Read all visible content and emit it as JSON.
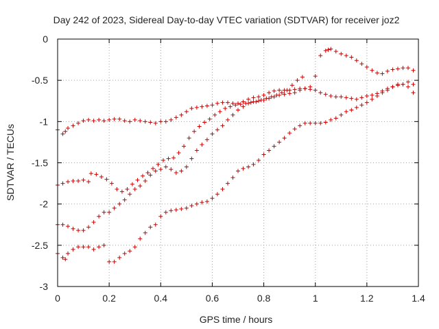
{
  "chart_data": {
    "type": "scatter",
    "title": "Day 242 of 2023, Sidereal Day-to-day VTEC variation (SDTVAR) for receiver joz2",
    "xlabel": "GPS time / hours",
    "ylabel": "SDTVAR / TECUs",
    "xlim": [
      0,
      1.4
    ],
    "ylim": [
      -3,
      0
    ],
    "x_ticks": [
      {
        "value": 0,
        "label": "0"
      },
      {
        "value": 0.2,
        "label": "0.2"
      },
      {
        "value": 0.4,
        "label": "0.4"
      },
      {
        "value": 0.6,
        "label": "0.6"
      },
      {
        "value": 0.8,
        "label": "0.8"
      },
      {
        "value": 1.0,
        "label": "1"
      },
      {
        "value": 1.2,
        "label": "1.2"
      },
      {
        "value": 1.4,
        "label": "1.4"
      }
    ],
    "y_ticks": [
      {
        "value": 0,
        "label": "0"
      },
      {
        "value": -0.5,
        "label": "-0.5"
      },
      {
        "value": -1,
        "label": "-1"
      },
      {
        "value": -1.5,
        "label": "-1.5"
      },
      {
        "value": -2,
        "label": "-2"
      },
      {
        "value": -2.5,
        "label": "-2.5"
      },
      {
        "value": -3,
        "label": "-3"
      }
    ],
    "grid": true,
    "marker": "+",
    "color": "#cc0000",
    "series": [
      {
        "x": [
          0,
          0.02,
          0.03,
          0.04,
          0.06,
          0.08,
          0.1,
          0.12,
          0.14,
          0.16,
          0.18,
          0.2,
          0.22,
          0.24,
          0.26,
          0.28,
          0.3,
          0.32,
          0.34,
          0.36,
          0.38,
          0.4,
          0.42,
          0.44,
          0.46,
          0.48,
          0.5,
          0.52,
          0.54,
          0.56,
          0.58,
          0.6,
          0.62,
          0.64,
          0.66,
          0.68,
          0.7,
          0.72,
          0.74,
          0.76,
          0.78,
          0.8,
          0.82,
          0.84,
          0.86,
          0.88,
          0.9,
          0.92,
          0.94,
          0.96,
          0.98,
          1.0,
          1.02,
          1.04,
          1.06,
          1.08,
          1.1,
          1.12,
          1.14,
          1.16,
          1.18,
          1.2,
          1.22,
          1.24,
          1.26,
          1.28,
          1.3,
          1.32,
          1.34,
          1.36,
          1.38
        ],
        "y": [
          -1.1,
          -1.15,
          -1.12,
          -1.08,
          -1.05,
          -1.02,
          -0.99,
          -0.98,
          -0.99,
          -0.98,
          -0.99,
          -0.98,
          -0.97,
          -0.97,
          -0.99,
          -1.0,
          -0.98,
          -0.99,
          -1.0,
          -1.01,
          -1.02,
          -1.0,
          -1.0,
          -0.98,
          -0.95,
          -0.92,
          -0.88,
          -0.84,
          -0.83,
          -0.82,
          -0.81,
          -0.8,
          -0.78,
          -0.77,
          -0.77,
          -0.78,
          -0.78,
          -0.76,
          -0.73,
          -0.71,
          -0.7,
          -0.68,
          -0.65,
          -0.63,
          -0.62,
          -0.62,
          -0.62,
          -0.61,
          -0.6,
          -0.6,
          -0.61,
          -0.62,
          -0.65,
          -0.67,
          -0.69,
          -0.7,
          -0.7,
          -0.71,
          -0.72,
          -0.73,
          -0.71,
          -0.69,
          -0.68,
          -0.66,
          -0.63,
          -0.6,
          -0.58,
          -0.56,
          -0.55,
          -0.52,
          -0.55
        ]
      },
      {
        "x": [
          0,
          0.02,
          0.04,
          0.06,
          0.08,
          0.1,
          0.12,
          0.13,
          0.15,
          0.17,
          0.19,
          0.21,
          0.23,
          0.25,
          0.27,
          0.29,
          0.31,
          0.33,
          0.35,
          0.37,
          0.39,
          0.41,
          0.43,
          0.45,
          0.47,
          0.49,
          0.51,
          0.53,
          0.55,
          0.57,
          0.59,
          0.61,
          0.63,
          0.65,
          0.67,
          0.69,
          0.71,
          0.73,
          0.75,
          0.77,
          0.79,
          0.81,
          0.83,
          0.85,
          0.87,
          0.89,
          0.91,
          0.93,
          0.95
        ],
        "y": [
          -1.77,
          -1.75,
          -1.73,
          -1.72,
          -1.72,
          -1.71,
          -1.73,
          -1.63,
          -1.64,
          -1.67,
          -1.7,
          -1.75,
          -1.82,
          -1.85,
          -1.82,
          -1.76,
          -1.71,
          -1.66,
          -1.62,
          -1.57,
          -1.52,
          -1.47,
          -1.45,
          -1.44,
          -1.38,
          -1.3,
          -1.2,
          -1.12,
          -1.06,
          -1.01,
          -0.97,
          -0.92,
          -0.88,
          -0.84,
          -0.82,
          -0.8,
          -0.79,
          -0.78,
          -0.77,
          -0.76,
          -0.74,
          -0.72,
          -0.7,
          -0.68,
          -0.65,
          -0.62,
          -0.56,
          -0.5,
          -0.46
        ]
      },
      {
        "x": [
          0,
          0.02,
          0.04,
          0.06,
          0.08,
          0.1,
          0.12,
          0.14,
          0.16,
          0.18,
          0.2,
          0.22,
          0.24,
          0.26,
          0.28,
          0.3,
          0.32,
          0.34,
          0.36,
          0.38,
          0.4,
          0.42,
          0.44,
          0.46,
          0.48,
          0.5,
          0.52,
          0.54,
          0.56,
          0.58,
          0.6,
          0.62,
          0.64,
          0.66,
          0.68,
          0.7,
          0.72,
          0.74,
          0.76,
          0.78,
          0.8,
          0.82,
          0.84,
          0.86,
          0.88,
          0.9,
          0.92,
          0.94,
          0.96,
          0.98,
          1.0,
          1.02,
          1.04,
          1.05,
          1.06,
          1.08,
          1.1,
          1.12,
          1.14,
          1.16,
          1.18,
          1.2,
          1.22,
          1.24,
          1.26,
          1.28,
          1.3,
          1.32,
          1.34,
          1.36,
          1.38
        ],
        "y": [
          -2.25,
          -2.25,
          -2.27,
          -2.3,
          -2.32,
          -2.32,
          -2.28,
          -2.22,
          -2.15,
          -2.1,
          -2.1,
          -2.05,
          -2.0,
          -1.95,
          -1.88,
          -1.82,
          -1.78,
          -1.72,
          -1.65,
          -1.6,
          -1.58,
          -1.55,
          -1.58,
          -1.62,
          -1.6,
          -1.55,
          -1.45,
          -1.35,
          -1.28,
          -1.22,
          -1.15,
          -1.1,
          -1.05,
          -0.98,
          -0.92,
          -0.86,
          -0.82,
          -0.78,
          -0.76,
          -0.75,
          -0.74,
          -0.72,
          -0.7,
          -0.68,
          -0.67,
          -0.66,
          -0.65,
          -0.62,
          -0.6,
          -0.58,
          -0.45,
          -0.2,
          -0.14,
          -0.13,
          -0.12,
          -0.15,
          -0.18,
          -0.2,
          -0.22,
          -0.26,
          -0.3,
          -0.34,
          -0.38,
          -0.41,
          -0.42,
          -0.39,
          -0.37,
          -0.36,
          -0.35,
          -0.35,
          -0.38
        ]
      },
      {
        "x": [
          0,
          0.02,
          0.03,
          0.04,
          0.06,
          0.08,
          0.1,
          0.12,
          0.14,
          0.16,
          0.18,
          0.2,
          0.22,
          0.24,
          0.26,
          0.28,
          0.3,
          0.32,
          0.34,
          0.36,
          0.38,
          0.4,
          0.42,
          0.44,
          0.46,
          0.48,
          0.5,
          0.52,
          0.54,
          0.56,
          0.58,
          0.6,
          0.62,
          0.64,
          0.66,
          0.68,
          0.7,
          0.72,
          0.74,
          0.76,
          0.78,
          0.8,
          0.82,
          0.84,
          0.86,
          0.88,
          0.9,
          0.92,
          0.94,
          0.96,
          0.98,
          1.0,
          1.02,
          1.04,
          1.06,
          1.08,
          1.1,
          1.12,
          1.14,
          1.16,
          1.18,
          1.2,
          1.22,
          1.24,
          1.26,
          1.28,
          1.3,
          1.32,
          1.34,
          1.36,
          1.38
        ],
        "y": [
          -2.6,
          -2.65,
          -2.67,
          -2.6,
          -2.55,
          -2.52,
          -2.52,
          -2.52,
          -2.55,
          -2.52,
          -2.5,
          -2.7,
          -2.7,
          -2.65,
          -2.6,
          -2.57,
          -2.52,
          -2.42,
          -2.35,
          -2.28,
          -2.25,
          -2.15,
          -2.1,
          -2.08,
          -2.07,
          -2.06,
          -2.05,
          -2.02,
          -2.0,
          -1.98,
          -1.97,
          -1.93,
          -1.88,
          -1.82,
          -1.75,
          -1.68,
          -1.6,
          -1.57,
          -1.55,
          -1.52,
          -1.47,
          -1.4,
          -1.35,
          -1.3,
          -1.25,
          -1.2,
          -1.14,
          -1.09,
          -1.05,
          -1.02,
          -1.02,
          -1.02,
          -1.02,
          -1.01,
          -0.98,
          -0.96,
          -0.92,
          -0.88,
          -0.86,
          -0.83,
          -0.8,
          -0.77,
          -0.73,
          -0.69,
          -0.65,
          -0.62,
          -0.58,
          -0.55,
          -0.55,
          -0.58,
          -0.65
        ]
      }
    ]
  }
}
